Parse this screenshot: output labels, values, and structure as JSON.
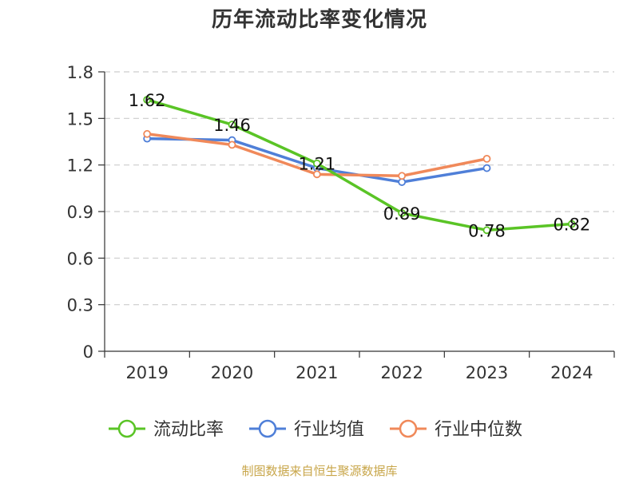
{
  "title": "历年流动比率变化情况",
  "source": "制图数据来自恒生聚源数据库",
  "chart_data": {
    "type": "line",
    "title": "历年流动比率变化情况",
    "xlabel": "",
    "ylabel": "",
    "categories": [
      "2019",
      "2020",
      "2021",
      "2022",
      "2023",
      "2024"
    ],
    "ylim": [
      0,
      1.8
    ],
    "yticks": [
      "0",
      "0.3",
      "0.6",
      "0.9",
      "1.2",
      "1.5",
      "1.8"
    ],
    "grid": true,
    "legend_position": "bottom",
    "series": [
      {
        "name": "流动比率",
        "color": "#5ac426",
        "values": [
          1.62,
          1.46,
          1.21,
          0.89,
          0.78,
          0.82
        ],
        "labels": [
          "1.62",
          "1.46",
          "1.21",
          "0.89",
          "0.78",
          "0.82"
        ]
      },
      {
        "name": "行业均值",
        "color": "#4f7fd8",
        "values": [
          1.37,
          1.36,
          1.18,
          1.09,
          1.18,
          null
        ]
      },
      {
        "name": "行业中位数",
        "color": "#f0895a",
        "values": [
          1.4,
          1.33,
          1.14,
          1.13,
          1.24,
          null
        ]
      }
    ]
  }
}
